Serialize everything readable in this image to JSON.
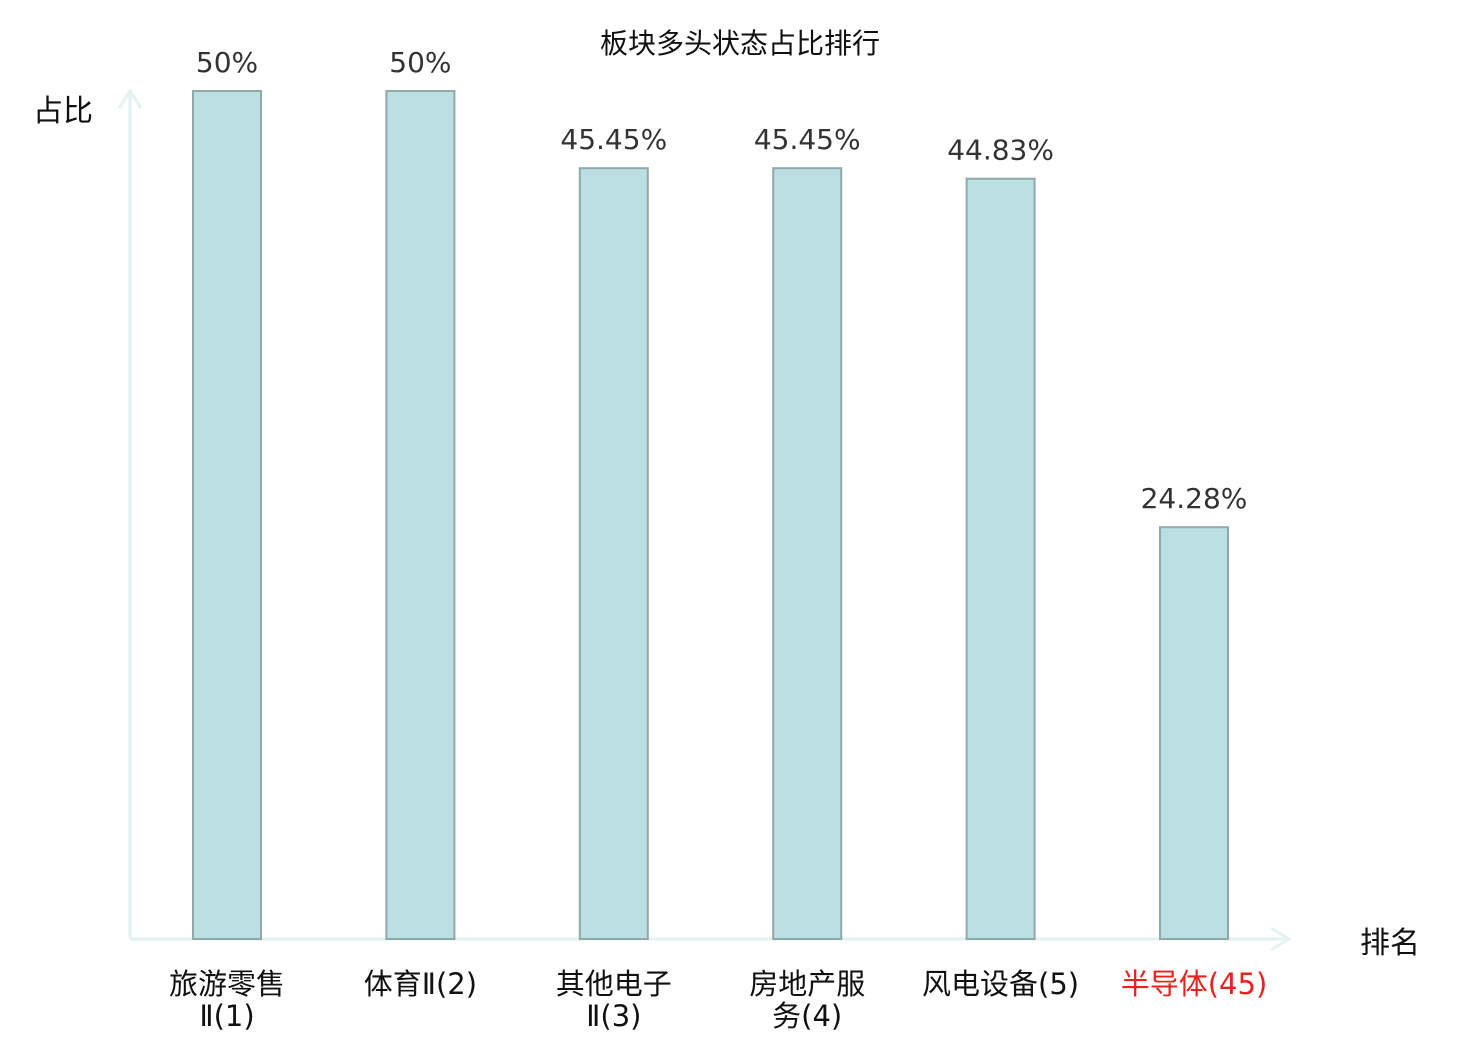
{
  "chart_data": {
    "type": "bar",
    "title": "板块多头状态占比排行",
    "ylabel": "占比",
    "xlabel": "排名",
    "categories": [
      {
        "lines": [
          "旅游零售",
          "Ⅱ(1)"
        ],
        "highlight": false
      },
      {
        "lines": [
          "体育Ⅱ(2)"
        ],
        "highlight": false
      },
      {
        "lines": [
          "其他电子",
          "Ⅱ(3)"
        ],
        "highlight": false
      },
      {
        "lines": [
          "房地产服",
          "务(4)"
        ],
        "highlight": false
      },
      {
        "lines": [
          "风电设备(5)"
        ],
        "highlight": false
      },
      {
        "lines": [
          "半导体(45)"
        ],
        "highlight": true
      }
    ],
    "values": [
      50,
      50,
      45.45,
      45.45,
      44.83,
      24.28
    ],
    "value_labels": [
      "50%",
      "50%",
      "45.45%",
      "45.45%",
      "44.83%",
      "24.28%"
    ],
    "ylim": [
      0,
      50
    ],
    "grid": false,
    "legend": "none",
    "colors": {
      "bar_fill": "#bce0e2",
      "bar_stroke": "#8fa9ab",
      "axis": "#e3f3f1",
      "highlight_text": "#e8231f",
      "text": "#111111",
      "value_text": "#333333",
      "tick_suffix": "#444444"
    }
  }
}
